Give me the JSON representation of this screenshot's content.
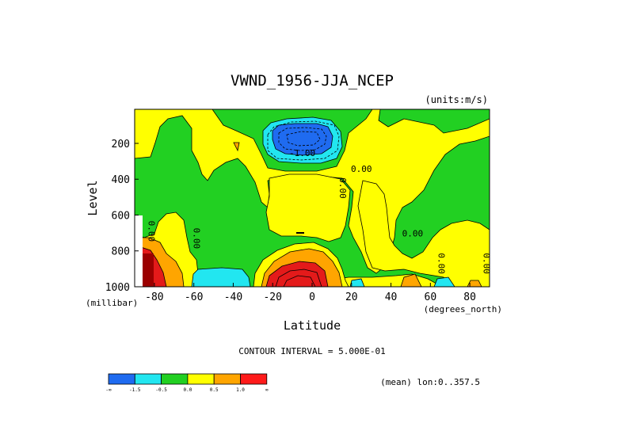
{
  "chart_data": {
    "type": "heatmap",
    "title": "VWND_1956-JJA_NCEP",
    "units_label": "(units:m/s)",
    "xlabel": "Latitude",
    "ylabel": "Level",
    "x_unit": "(degrees_north)",
    "y_unit": "(millibar)",
    "xlim": [
      -90,
      90
    ],
    "ylim": [
      1000,
      10
    ],
    "x_ticks": [
      -80,
      -60,
      -40,
      -20,
      0,
      20,
      40,
      60,
      80
    ],
    "y_ticks": [
      200,
      400,
      600,
      800,
      1000
    ],
    "contour_interval_label": "CONTOUR INTERVAL = 5.000E-01",
    "mean_label": "(mean) lon:0..357.5",
    "contour_labels": [
      {
        "text": "0.00",
        "lat": -83,
        "level": 690,
        "rotate": 90
      },
      {
        "text": "0.00",
        "lat": -60,
        "level": 730,
        "rotate": 90
      },
      {
        "text": "0.00",
        "lat": 14,
        "level": 450,
        "rotate": 90
      },
      {
        "text": "0.00",
        "lat": 25,
        "level": 360,
        "rotate": 0
      },
      {
        "text": "-1.00",
        "lat": -5,
        "level": 270,
        "rotate": 0
      },
      {
        "text": "0.00",
        "lat": 51,
        "level": 720,
        "rotate": 0
      },
      {
        "text": "0.00",
        "lat": 64,
        "level": 870,
        "rotate": 90
      },
      {
        "text": "0.00",
        "lat": 87,
        "level": 870,
        "rotate": 90
      }
    ],
    "colorbar": {
      "colors": [
        "#1f6bf0",
        "#22e6f0",
        "#22d022",
        "#ffff00",
        "#ffa500",
        "#ff1a1a"
      ],
      "tick_labels": [
        "-∞",
        "-1.5",
        "-0.5",
        "0.0",
        "0.5",
        "1.0",
        "∞"
      ]
    },
    "colors": {
      "green": "#22d022",
      "yellow": "#ffff00",
      "cyan": "#22e6f0",
      "blue": "#1f6bf0",
      "orange": "#ffa500",
      "red": "#e41a1a",
      "darkred": "#9b0000"
    }
  }
}
